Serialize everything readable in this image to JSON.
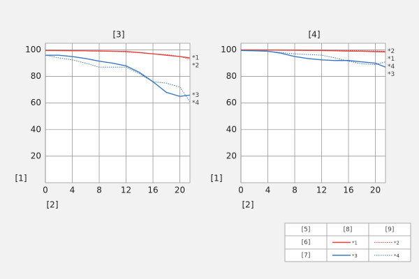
{
  "chart_data": [
    {
      "type": "line",
      "title": "[3]",
      "ylabel": "[1]",
      "xlabel": "[2]",
      "x": [
        0,
        2,
        4,
        6,
        8,
        10,
        12,
        14,
        16,
        18,
        20,
        21.5
      ],
      "xlim": [
        0,
        21.5
      ],
      "ylim": [
        0,
        105
      ],
      "xticks": [
        0,
        4,
        8,
        12,
        16,
        20
      ],
      "yticks": [
        20,
        40,
        60,
        80,
        100
      ],
      "grid": true,
      "series": [
        {
          "name": "*1",
          "color": "#e8413c",
          "style": "solid",
          "values": [
            99.5,
            99.5,
            99.4,
            99.3,
            99.2,
            99,
            98.8,
            98,
            97,
            96,
            95,
            94
          ]
        },
        {
          "name": "*2",
          "color": "#e8413c",
          "style": "dotted",
          "values": [
            99.5,
            99.4,
            99.3,
            99.2,
            99,
            98.8,
            98.5,
            97.8,
            97,
            96.5,
            95,
            93
          ]
        },
        {
          "name": "*3",
          "color": "#3b78c2",
          "style": "solid",
          "values": [
            96,
            96,
            95,
            93.5,
            91.5,
            90,
            88,
            83,
            76,
            68,
            65,
            66
          ]
        },
        {
          "name": "*4",
          "color": "#3b78c2",
          "style": "dotted",
          "values": [
            96,
            94,
            92.5,
            90,
            87,
            87,
            87,
            82,
            76,
            75,
            72,
            61
          ]
        }
      ]
    },
    {
      "type": "line",
      "title": "[4]",
      "ylabel": "[1]",
      "xlabel": "[2]",
      "x": [
        0,
        2,
        4,
        6,
        8,
        10,
        12,
        14,
        16,
        18,
        20,
        21.5
      ],
      "xlim": [
        0,
        21.5
      ],
      "ylim": [
        0,
        105
      ],
      "xticks": [
        0,
        4,
        8,
        12,
        16,
        20
      ],
      "yticks": [
        20,
        40,
        60,
        80,
        100
      ],
      "grid": true,
      "series": [
        {
          "name": "*1",
          "color": "#e8413c",
          "style": "solid",
          "values": [
            100,
            100,
            99.9,
            99.8,
            99.7,
            99.6,
            99.5,
            99.3,
            99.1,
            99,
            98.7,
            98.5
          ]
        },
        {
          "name": "*2",
          "color": "#e8413c",
          "style": "dotted",
          "values": [
            100,
            100,
            100,
            99.9,
            99.9,
            99.8,
            99.7,
            99.6,
            99.5,
            99.4,
            99.2,
            99
          ]
        },
        {
          "name": "*3",
          "color": "#3b78c2",
          "style": "solid",
          "values": [
            99.5,
            99.3,
            99,
            97.5,
            95,
            93.5,
            92.5,
            92,
            92,
            91,
            90,
            87
          ]
        },
        {
          "name": "*4",
          "color": "#3b78c2",
          "style": "dotted",
          "values": [
            99.5,
            99.4,
            99,
            98,
            97,
            96.5,
            96,
            94,
            91.5,
            89.5,
            89,
            91
          ]
        }
      ]
    }
  ],
  "legend": {
    "headers": [
      "[5]",
      "[8]",
      "[9]"
    ],
    "rows": [
      "[6]",
      "[7]"
    ]
  }
}
